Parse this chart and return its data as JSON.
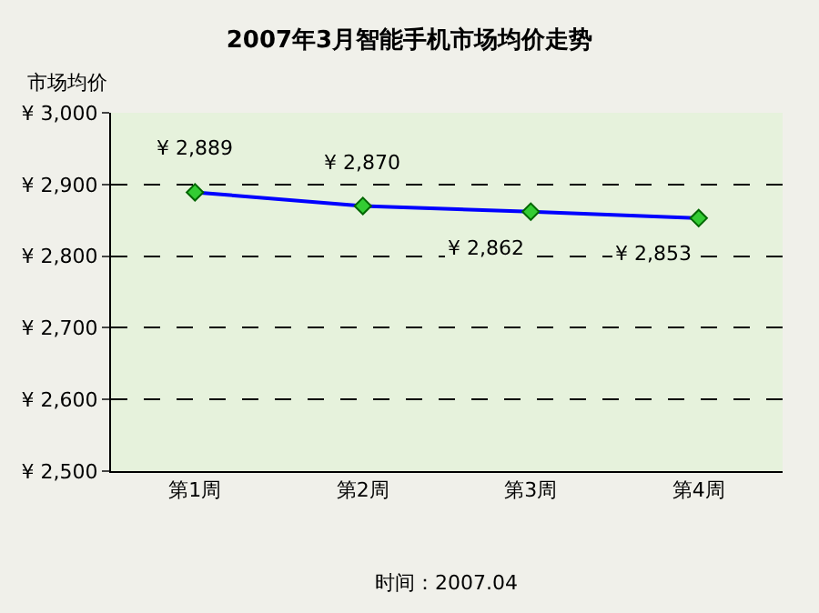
{
  "chart_data": {
    "type": "line",
    "title": "2007年3月智能手机市场均价走势",
    "ylabel": "市场均价",
    "categories": [
      "第1周",
      "第2周",
      "第3周",
      "第4周"
    ],
    "series": [
      {
        "color": "#0000ff",
        "values": [
          2889,
          2870,
          2862,
          2853
        ],
        "value_labels": [
          "¥ 2,889",
          "¥ 2,870",
          "¥ 2,862",
          "¥ 2,853"
        ]
      }
    ],
    "ylim": [
      2500,
      3000
    ],
    "yticks": [
      {
        "value": 2500,
        "label": "¥ 2,500"
      },
      {
        "value": 2600,
        "label": "¥ 2,600"
      },
      {
        "value": 2700,
        "label": "¥ 2,700"
      },
      {
        "value": 2800,
        "label": "¥ 2,800"
      },
      {
        "value": 2900,
        "label": "¥ 2,900"
      },
      {
        "value": 3000,
        "label": "¥ 3,000"
      }
    ],
    "grid": "y",
    "marker": "diamond",
    "line_style": "solid",
    "annotations": [
      "时间：2007.04"
    ]
  }
}
